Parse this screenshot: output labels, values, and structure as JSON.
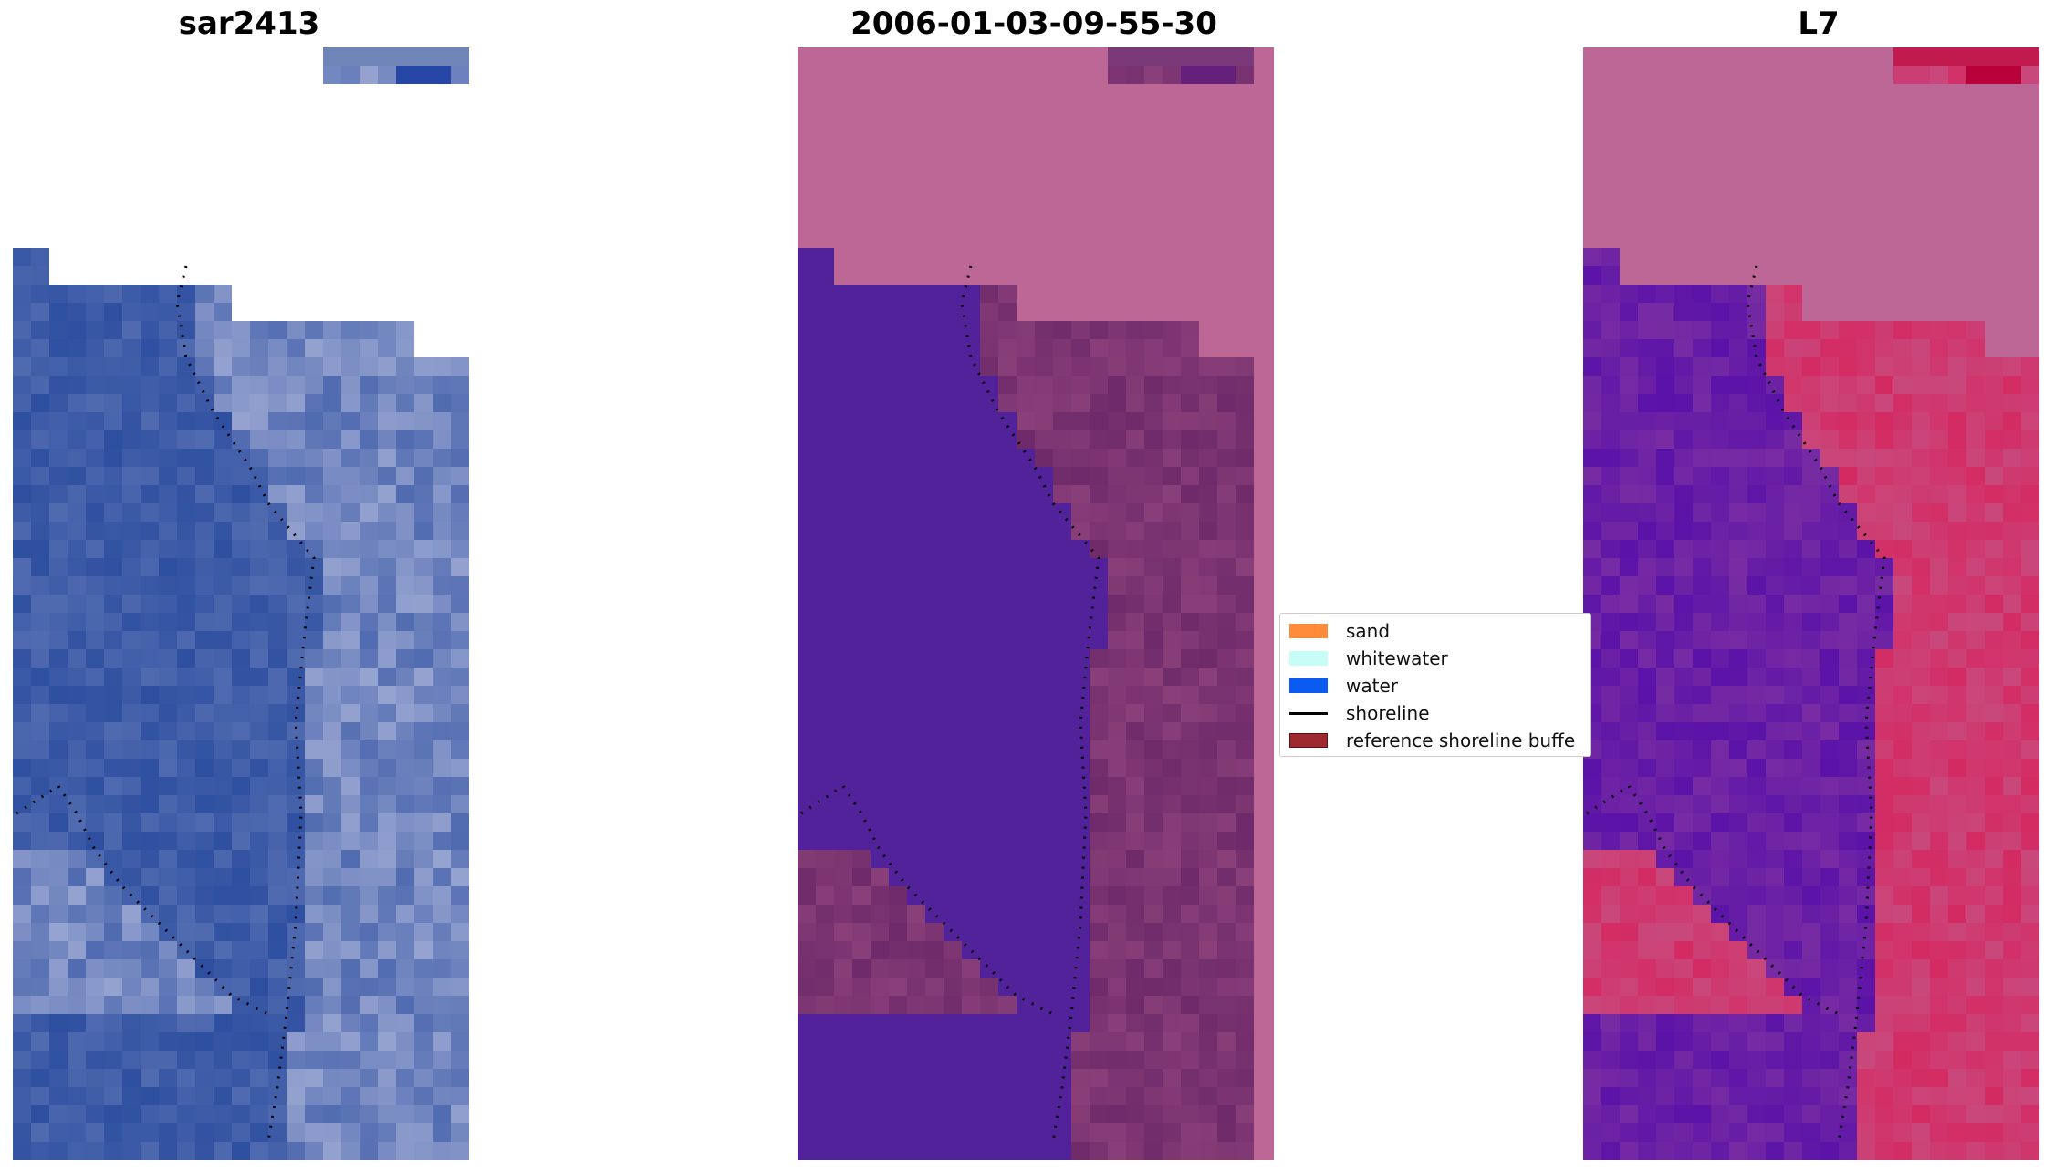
{
  "panels": [
    {
      "title": "sar2413"
    },
    {
      "title": "2006-01-03-09-55-30"
    },
    {
      "title": "L7"
    }
  ],
  "legend": {
    "items": [
      {
        "label": "sand",
        "color": "#ff8c3a"
      },
      {
        "label": "whitewater",
        "color": "#c8fdf7"
      },
      {
        "label": "water",
        "color": "#0a5cf0"
      },
      {
        "label": "shoreline",
        "color": "#000000"
      },
      {
        "label": "reference shoreline buffe",
        "color": "#9e2a2f"
      }
    ]
  },
  "colors": {
    "rgb_water": "#2e4fa0",
    "rgb_foam": "#b8bfe0",
    "classified_water": "#52229a",
    "classified_land": "#6e2a6a",
    "mask_pink": "#bd6796",
    "ndwi_water": "#5a12a8",
    "ndwi_land": "#d42a62",
    "shoreline": "#000000"
  }
}
